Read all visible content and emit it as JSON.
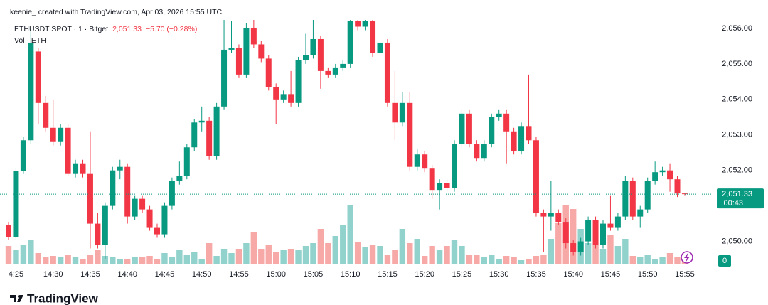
{
  "header": {
    "caption": "keenie_ created with TradingView.com, Apr 03, 2026 15:55 UTC"
  },
  "chart_data": {
    "type": "candlestick",
    "title": "ETHUSDT SPOT · 1 · Bitget",
    "last_price": {
      "value": 2051.33,
      "label": "2,051.33"
    },
    "change_label": "−5.70 (−0.28%)",
    "countdown": "00:43",
    "volume_label": "Vol · ETH",
    "up_color": "#089981",
    "down_color": "#f23645",
    "grid": false,
    "ylim": [
      2049.27,
      2056.24
    ],
    "yticks": [
      {
        "value": 2050,
        "label": "2,050.00"
      },
      {
        "value": 2052,
        "label": "2,052.00"
      },
      {
        "value": 2053,
        "label": "2,053.00"
      },
      {
        "value": 2054,
        "label": "2,054.00"
      },
      {
        "value": 2055,
        "label": "2,055.00"
      },
      {
        "value": 2056,
        "label": "2,056.00"
      }
    ],
    "categories": [
      null,
      "4:25",
      null,
      null,
      null,
      null,
      "14:30",
      null,
      null,
      null,
      null,
      "14:35",
      null,
      null,
      null,
      null,
      "14:40",
      null,
      null,
      null,
      null,
      "14:45",
      null,
      null,
      null,
      null,
      "14:50",
      null,
      null,
      null,
      null,
      "14:55",
      null,
      null,
      null,
      null,
      "15:00",
      null,
      null,
      null,
      null,
      "15:05",
      null,
      null,
      null,
      null,
      "15:10",
      null,
      null,
      null,
      null,
      "15:15",
      null,
      null,
      null,
      null,
      "15:20",
      null,
      null,
      null,
      null,
      "15:25",
      null,
      null,
      null,
      null,
      "15:30",
      null,
      null,
      null,
      null,
      "15:35",
      null,
      null,
      null,
      null,
      "15:40",
      null,
      null,
      null,
      null,
      "15:45",
      null,
      null,
      null,
      null,
      "15:50",
      null,
      null,
      null,
      null,
      "15:55"
    ],
    "open": [
      2050.46,
      2050.12,
      2051.98,
      2052.85,
      2055.35,
      2053.9,
      2053.2,
      2052.8,
      2053.2,
      2051.9,
      2052.2,
      2051.9,
      2050.5,
      2049.9,
      2051.0,
      2052.0,
      2052.1,
      2050.7,
      2051.2,
      2050.9,
      2050.4,
      2050.2,
      2051.0,
      2051.7,
      2051.85,
      2052.65,
      2053.35,
      2053.4,
      2052.4,
      2053.8,
      2055.4,
      2055.45,
      2054.7,
      2056.0,
      2055.55,
      2055.15,
      2054.35,
      2054.0,
      2054.15,
      2053.9,
      2055.1,
      2055.25,
      2055.7,
      2054.8,
      2054.7,
      2054.9,
      2055.0,
      2056.2,
      2056.05,
      2056.2,
      2055.3,
      2055.6,
      2053.9,
      2053.35,
      2053.9,
      2052.1,
      2052.45,
      2052.05,
      2051.45,
      2051.65,
      2051.5,
      2052.75,
      2053.6,
      2052.75,
      2052.35,
      2052.75,
      2053.5,
      2053.6,
      2053.1,
      2052.55,
      2053.25,
      2052.85,
      2050.8,
      2050.7,
      2050.8,
      2050.55,
      2049.95,
      2049.7,
      2050.0,
      2050.6,
      2049.9,
      2050.5,
      2050.4,
      2050.7,
      2051.7,
      2050.7,
      2050.9,
      2051.7,
      2051.95,
      2052.0,
      2051.75,
      2051.35
    ],
    "high": [
      2050.55,
      2052.05,
      2052.95,
      2056.0,
      2055.45,
      2054.1,
      2054.0,
      2053.3,
      2053.3,
      2052.3,
      2052.3,
      2053.1,
      2050.8,
      2051.1,
      2052.1,
      2052.3,
      2052.2,
      2051.3,
      2051.3,
      2051.0,
      2050.5,
      2051.1,
      2051.8,
      2052.25,
      2052.75,
      2053.45,
      2053.8,
      2053.5,
      2053.9,
      2056.25,
      2056.2,
      2055.55,
      2056.15,
      2056.25,
      2055.65,
      2055.25,
      2054.45,
      2054.25,
      2054.8,
      2055.2,
      2055.85,
      2056.25,
      2055.8,
      2054.9,
      2055.0,
      2055.1,
      2056.25,
      2056.25,
      2056.25,
      2056.25,
      2055.7,
      2055.7,
      2054.8,
      2054.2,
      2054.2,
      2052.6,
      2052.55,
      2052.15,
      2051.75,
      2051.75,
      2052.85,
      2053.7,
      2053.7,
      2052.85,
      2052.85,
      2053.6,
      2053.7,
      2053.7,
      2053.2,
      2053.35,
      2054.7,
      2052.95,
      2050.9,
      2051.7,
      2050.9,
      2050.65,
      2050.05,
      2050.1,
      2050.7,
      2050.7,
      2050.6,
      2051.3,
      2050.8,
      2051.85,
      2051.8,
      2051.0,
      2051.8,
      2052.25,
      2052.1,
      2052.2,
      2051.85,
      2051.35
    ],
    "low": [
      2050.05,
      2050.05,
      2051.9,
      2052.75,
      2053.3,
      2053.1,
      2052.7,
      2052.7,
      2051.85,
      2051.8,
      2051.8,
      2049.8,
      2049.8,
      2049.5,
      2050.9,
      2051.75,
      2050.5,
      2050.6,
      2050.8,
      2050.3,
      2050.1,
      2050.1,
      2050.9,
      2051.6,
      2051.75,
      2052.55,
      2053.1,
      2052.3,
      2052.3,
      2053.7,
      2055.3,
      2054.6,
      2054.6,
      2055.45,
      2055.05,
      2054.25,
      2053.3,
      2053.9,
      2053.8,
      2053.8,
      2055.0,
      2055.15,
      2054.3,
      2054.6,
      2054.6,
      2054.8,
      2054.9,
      2055.95,
      2055.95,
      2055.2,
      2055.2,
      2053.8,
      2052.85,
      2053.25,
      2052.0,
      2052.0,
      2051.95,
      2051.2,
      2050.9,
      2051.4,
      2051.4,
      2052.65,
      2052.65,
      2052.25,
      2052.25,
      2052.65,
      2053.4,
      2052.2,
      2052.45,
      2052.45,
      2052.75,
      2050.7,
      2049.7,
      2050.3,
      2050.45,
      2049.8,
      2049.6,
      2049.6,
      2049.9,
      2049.8,
      2049.8,
      2050.3,
      2050.3,
      2050.6,
      2050.6,
      2050.4,
      2050.8,
      2051.6,
      2051.85,
      2051.4,
      2051.25,
      2051.3
    ],
    "close": [
      2050.12,
      2051.98,
      2052.85,
      2055.6,
      2053.9,
      2053.2,
      2052.8,
      2053.2,
      2051.9,
      2052.2,
      2051.9,
      2050.5,
      2049.9,
      2051.0,
      2052.0,
      2052.1,
      2050.7,
      2051.2,
      2050.9,
      2050.4,
      2050.2,
      2051.0,
      2051.7,
      2051.85,
      2052.65,
      2053.35,
      2053.4,
      2052.4,
      2053.8,
      2055.4,
      2055.45,
      2054.7,
      2056.0,
      2055.55,
      2055.15,
      2054.35,
      2054.0,
      2054.15,
      2053.9,
      2055.1,
      2055.25,
      2055.7,
      2054.8,
      2054.7,
      2054.9,
      2055.0,
      2056.2,
      2056.05,
      2056.2,
      2055.3,
      2055.6,
      2053.9,
      2053.35,
      2053.9,
      2052.1,
      2052.45,
      2052.05,
      2051.45,
      2051.65,
      2051.5,
      2052.75,
      2053.6,
      2052.75,
      2052.35,
      2052.75,
      2053.5,
      2053.6,
      2053.1,
      2052.55,
      2053.25,
      2052.85,
      2050.8,
      2050.7,
      2050.8,
      2050.55,
      2049.95,
      2049.7,
      2050.0,
      2050.6,
      2049.9,
      2050.5,
      2050.4,
      2050.7,
      2051.7,
      2050.7,
      2050.9,
      2051.7,
      2051.95,
      2052.0,
      2051.75,
      2051.35,
      2051.33
    ],
    "volume": {
      "up_color": "#92d2cc",
      "down_color": "#f7a9a7",
      "ylim": [
        0,
        100
      ],
      "yticks": [
        0
      ],
      "values": [
        26,
        20,
        28,
        34,
        16,
        10,
        12,
        10,
        14,
        10,
        8,
        14,
        20,
        12,
        10,
        8,
        8,
        10,
        10,
        12,
        8,
        16,
        10,
        20,
        14,
        18,
        8,
        30,
        12,
        22,
        16,
        22,
        30,
        46,
        22,
        28,
        18,
        20,
        22,
        20,
        26,
        30,
        50,
        30,
        40,
        56,
        84,
        32,
        24,
        28,
        26,
        14,
        20,
        50,
        30,
        36,
        12,
        26,
        20,
        26,
        34,
        26,
        14,
        14,
        10,
        14,
        8,
        12,
        10,
        6,
        8,
        12,
        14,
        36,
        58,
        84,
        78,
        50,
        30,
        28,
        22,
        42,
        26,
        36,
        12,
        10,
        14,
        8,
        10,
        16,
        10,
        6
      ]
    }
  },
  "footer": {
    "brand": "TradingView"
  }
}
